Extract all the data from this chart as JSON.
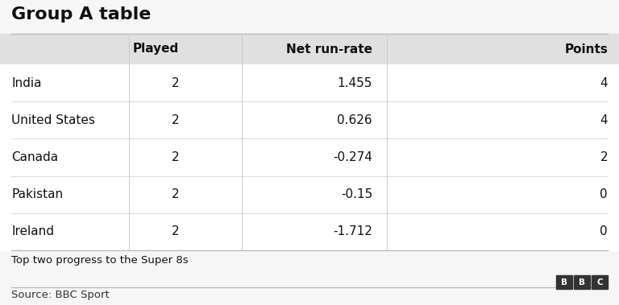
{
  "title": "Group A table",
  "columns": [
    "",
    "Played",
    "Net run-rate",
    "Points"
  ],
  "rows": [
    [
      "India",
      "2",
      "1.455",
      "4"
    ],
    [
      "United States",
      "2",
      "0.626",
      "4"
    ],
    [
      "Canada",
      "2",
      "-0.274",
      "2"
    ],
    [
      "Pakistan",
      "2",
      "-0.15",
      "0"
    ],
    [
      "Ireland",
      "2",
      "-1.712",
      "0"
    ]
  ],
  "footer_note": "Top two progress to the Super 8s",
  "source": "Source: BBC Sport",
  "bg_color": "#f6f6f6",
  "header_bg": "#e0e0e0",
  "title_fontsize": 16,
  "header_fontsize": 11,
  "cell_fontsize": 11,
  "footer_fontsize": 9.5,
  "source_fontsize": 9.5,
  "col_aligns": [
    "left",
    "right",
    "right",
    "right"
  ]
}
